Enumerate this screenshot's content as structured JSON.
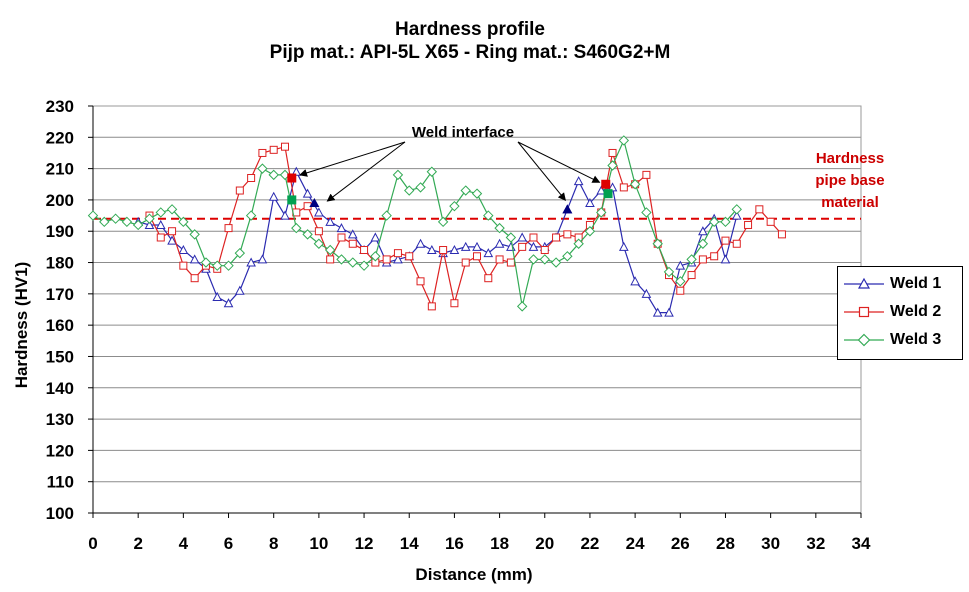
{
  "chart_data": {
    "type": "line",
    "title": "Hardness profile",
    "subtitle": "Pijp mat.: API-5L X65 - Ring mat.: S460G2+M",
    "xlabel": "Distance (mm)",
    "ylabel": "Hardness (HV1)",
    "xlim": [
      0,
      34
    ],
    "ylim": [
      100,
      230
    ],
    "x_ticks": [
      0,
      2,
      4,
      6,
      8,
      10,
      12,
      14,
      16,
      18,
      20,
      22,
      24,
      26,
      28,
      30,
      32,
      34
    ],
    "y_ticks": [
      100,
      110,
      120,
      130,
      140,
      150,
      160,
      170,
      180,
      190,
      200,
      210,
      220,
      230
    ],
    "grid": "horizontal",
    "legend_position": "right",
    "reference_line": {
      "label": "Hardness pipe base material",
      "value": 194,
      "color": "#dd0000"
    },
    "annotation": {
      "text": "Weld interface"
    },
    "interface_points": [
      {
        "series": "Weld 1",
        "x": 9.8,
        "y": 199,
        "color": "#000080"
      },
      {
        "series": "Weld 1",
        "x": 21.0,
        "y": 197,
        "color": "#000080"
      },
      {
        "series": "Weld 2",
        "x": 8.8,
        "y": 207,
        "color": "#dd0000"
      },
      {
        "series": "Weld 2",
        "x": 22.7,
        "y": 205,
        "color": "#dd0000"
      },
      {
        "series": "Weld 3",
        "x": 8.8,
        "y": 200,
        "color": "#00a050"
      },
      {
        "series": "Weld 3",
        "x": 22.8,
        "y": 202,
        "color": "#00a050"
      }
    ],
    "series": [
      {
        "name": "Weld 1",
        "color": "#2b2bb0",
        "marker": "triangle",
        "x": [
          2.0,
          2.5,
          3.0,
          3.5,
          4.0,
          4.5,
          5.0,
          5.5,
          6.0,
          6.5,
          7.0,
          7.5,
          8.0,
          8.5,
          9.0,
          9.5,
          10.0,
          10.5,
          11.0,
          11.5,
          12.0,
          12.5,
          13.0,
          13.5,
          14.0,
          14.5,
          15.0,
          15.5,
          16.0,
          16.5,
          17.0,
          17.5,
          18.0,
          18.5,
          19.0,
          19.5,
          20.0,
          20.5,
          21.0,
          21.5,
          22.0,
          22.5,
          23.0,
          23.5,
          24.0,
          24.5,
          25.0,
          25.5,
          26.0,
          26.5,
          27.0,
          27.5,
          28.0,
          28.5
        ],
        "values": [
          193,
          192,
          192,
          187,
          184,
          181,
          178,
          169,
          167,
          171,
          180,
          181,
          201,
          195,
          209,
          202,
          196,
          193,
          191,
          189,
          184,
          188,
          180,
          181,
          182,
          186,
          184,
          183,
          184,
          185,
          185,
          183,
          186,
          185,
          188,
          185,
          185,
          188,
          197,
          206,
          199,
          203,
          204,
          185,
          174,
          170,
          164,
          164,
          179,
          180,
          190,
          194,
          181,
          195
        ]
      },
      {
        "name": "Weld 2",
        "color": "#dd2222",
        "marker": "square",
        "x": [
          2.5,
          3.0,
          3.5,
          4.0,
          4.5,
          5.0,
          5.5,
          6.0,
          6.5,
          7.0,
          7.5,
          8.0,
          8.5,
          9.0,
          9.5,
          10.0,
          10.5,
          11.0,
          11.5,
          12.0,
          12.5,
          13.0,
          13.5,
          14.0,
          14.5,
          15.0,
          15.5,
          16.0,
          16.5,
          17.0,
          17.5,
          18.0,
          18.5,
          19.0,
          19.5,
          20.0,
          20.5,
          21.0,
          21.5,
          22.0,
          22.5,
          23.0,
          23.5,
          24.0,
          24.5,
          25.0,
          25.5,
          26.0,
          26.5,
          27.0,
          27.5,
          28.0,
          28.5,
          29.0,
          29.5,
          30.0,
          30.5
        ],
        "values": [
          195,
          188,
          190,
          179,
          175,
          179,
          178,
          191,
          203,
          207,
          215,
          216,
          217,
          196,
          198,
          190,
          181,
          188,
          186,
          184,
          180,
          181,
          183,
          182,
          174,
          166,
          184,
          167,
          180,
          182,
          175,
          181,
          180,
          185,
          188,
          184,
          188,
          189,
          188,
          192,
          196,
          215,
          204,
          205,
          208,
          186,
          176,
          171,
          176,
          181,
          182,
          187,
          186,
          192,
          197,
          193,
          189
        ]
      },
      {
        "name": "Weld 3",
        "color": "#33aa55",
        "marker": "diamond",
        "x": [
          0.0,
          0.5,
          1.0,
          1.5,
          2.0,
          2.5,
          3.0,
          3.5,
          4.0,
          4.5,
          5.0,
          5.5,
          6.0,
          6.5,
          7.0,
          7.5,
          8.0,
          8.5,
          9.0,
          9.5,
          10.0,
          10.5,
          11.0,
          11.5,
          12.0,
          12.5,
          13.0,
          13.5,
          14.0,
          14.5,
          15.0,
          15.5,
          16.0,
          16.5,
          17.0,
          17.5,
          18.0,
          18.5,
          19.0,
          19.5,
          20.0,
          20.5,
          21.0,
          21.5,
          22.0,
          22.5,
          23.0,
          23.5,
          24.0,
          24.5,
          25.0,
          25.5,
          26.0,
          26.5,
          27.0,
          27.5,
          28.0,
          28.5
        ],
        "values": [
          195,
          193,
          194,
          193,
          192,
          194,
          196,
          197,
          193,
          189,
          180,
          179,
          179,
          183,
          195,
          210,
          208,
          208,
          191,
          189,
          186,
          184,
          181,
          180,
          179,
          182,
          195,
          208,
          203,
          204,
          209,
          193,
          198,
          203,
          202,
          195,
          191,
          188,
          166,
          181,
          181,
          180,
          182,
          186,
          190,
          196,
          211,
          219,
          205,
          196,
          186,
          177,
          174,
          181,
          186,
          193,
          193,
          197
        ]
      }
    ]
  }
}
